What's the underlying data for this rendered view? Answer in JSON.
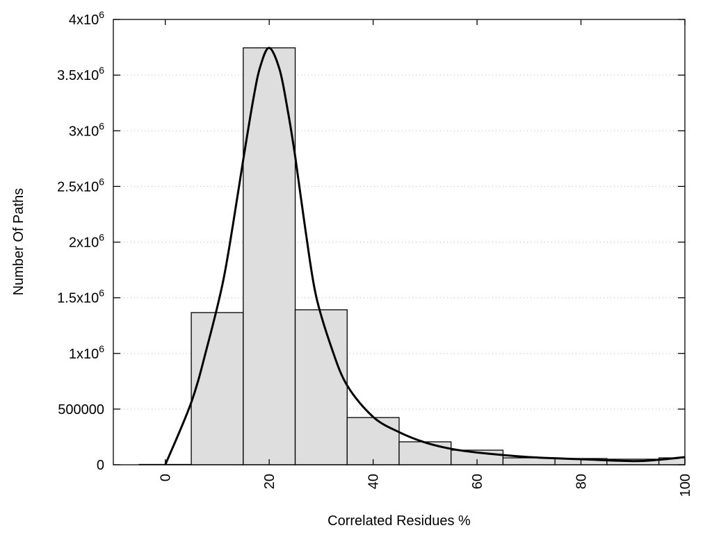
{
  "chart_data": {
    "type": "bar",
    "title": "",
    "xlabel": "Correlated Residues %",
    "ylabel": "Number Of Paths",
    "xlim": [
      -10,
      100
    ],
    "ylim": [
      0,
      4000000
    ],
    "grid": "horizontal dotted",
    "bar_width": 10,
    "bar_color": "#dedede",
    "categories": [
      0,
      10,
      20,
      30,
      40,
      50,
      60,
      70,
      80,
      90,
      100
    ],
    "values": [
      3000,
      1367000,
      3745000,
      1392000,
      424000,
      206000,
      131000,
      62000,
      56000,
      50000,
      62000
    ],
    "curve": {
      "x": [
        0,
        5,
        8,
        11,
        13,
        15,
        17,
        18.3,
        20,
        22,
        23.5,
        25,
        27,
        29,
        32,
        35,
        40,
        45,
        50,
        55,
        60,
        70,
        80,
        90,
        95,
        100
      ],
      "y": [
        0,
        560000,
        1050000,
        1620000,
        2150000,
        2740000,
        3300000,
        3580000,
        3745000,
        3550000,
        3200000,
        2770000,
        2100000,
        1520000,
        1050000,
        712000,
        430000,
        293000,
        200000,
        143000,
        110000,
        69000,
        50000,
        33000,
        45000,
        69000
      ],
      "color": "#000000"
    },
    "xticks": [
      "0",
      "20",
      "40",
      "60",
      "80",
      "100"
    ],
    "xtick_values": [
      0,
      20,
      40,
      60,
      80,
      100
    ],
    "yticks": [
      {
        "value": 0,
        "base": "0",
        "exp": ""
      },
      {
        "value": 500000,
        "base": "500000",
        "exp": ""
      },
      {
        "value": 1000000,
        "base": "1x10",
        "exp": "6"
      },
      {
        "value": 1500000,
        "base": "1.5x10",
        "exp": "6"
      },
      {
        "value": 2000000,
        "base": "2x10",
        "exp": "6"
      },
      {
        "value": 2500000,
        "base": "2.5x10",
        "exp": "6"
      },
      {
        "value": 3000000,
        "base": "3x10",
        "exp": "6"
      },
      {
        "value": 3500000,
        "base": "3.5x10",
        "exp": "6"
      },
      {
        "value": 4000000,
        "base": "4x10",
        "exp": "6"
      }
    ]
  }
}
